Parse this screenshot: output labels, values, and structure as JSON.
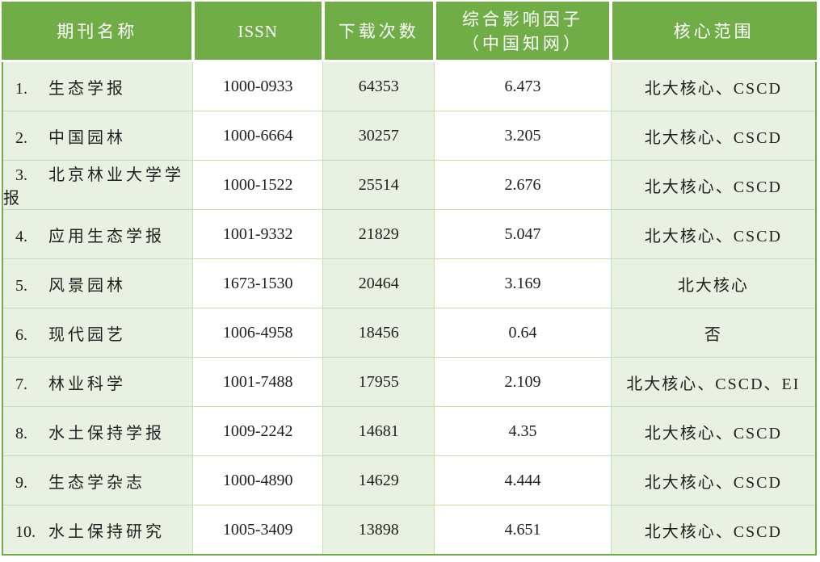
{
  "colors": {
    "header_bg": "#70AD47",
    "header_text": "#FFFFFF",
    "band_bg": "#E9F1E3",
    "inner_border": "#C5E0B4",
    "outer_border": "#70AD47",
    "body_text": "#1F1F1F"
  },
  "table": {
    "columns": [
      {
        "label": "期刊名称"
      },
      {
        "label": "ISSN"
      },
      {
        "label": "下载次数"
      },
      {
        "label": "综合影响因子",
        "label2": "（中国知网）"
      },
      {
        "label": "核心范围"
      }
    ],
    "rows": [
      {
        "rank": "1.",
        "name": "生态学报",
        "issn": "1000-0933",
        "downloads": "64353",
        "impact": "6.473",
        "core": "北大核心、CSCD"
      },
      {
        "rank": "2.",
        "name": "中国园林",
        "issn": "1000-6664",
        "downloads": "30257",
        "impact": "3.205",
        "core": "北大核心、CSCD"
      },
      {
        "rank": "3.",
        "name": "北京林业大学学报",
        "issn": "1000-1522",
        "downloads": "25514",
        "impact": "2.676",
        "core": "北大核心、CSCD"
      },
      {
        "rank": "4.",
        "name": "应用生态学报",
        "issn": "1001-9332",
        "downloads": "21829",
        "impact": "5.047",
        "core": "北大核心、CSCD"
      },
      {
        "rank": "5.",
        "name": "风景园林",
        "issn": "1673-1530",
        "downloads": "20464",
        "impact": "3.169",
        "core": "北大核心"
      },
      {
        "rank": "6.",
        "name": "现代园艺",
        "issn": "1006-4958",
        "downloads": "18456",
        "impact": "0.64",
        "core": "否"
      },
      {
        "rank": "7.",
        "name": "林业科学",
        "issn": "1001-7488",
        "downloads": "17955",
        "impact": "2.109",
        "core": "北大核心、CSCD、EI"
      },
      {
        "rank": "8.",
        "name": "水土保持学报",
        "issn": "1009-2242",
        "downloads": "14681",
        "impact": "4.35",
        "core": "北大核心、CSCD"
      },
      {
        "rank": "9.",
        "name": "生态学杂志",
        "issn": "1000-4890",
        "downloads": "14629",
        "impact": "4.444",
        "core": "北大核心、CSCD"
      },
      {
        "rank": "10.",
        "name": "水土保持研究",
        "issn": "1005-3409",
        "downloads": "13898",
        "impact": "4.651",
        "core": "北大核心、CSCD"
      }
    ]
  }
}
